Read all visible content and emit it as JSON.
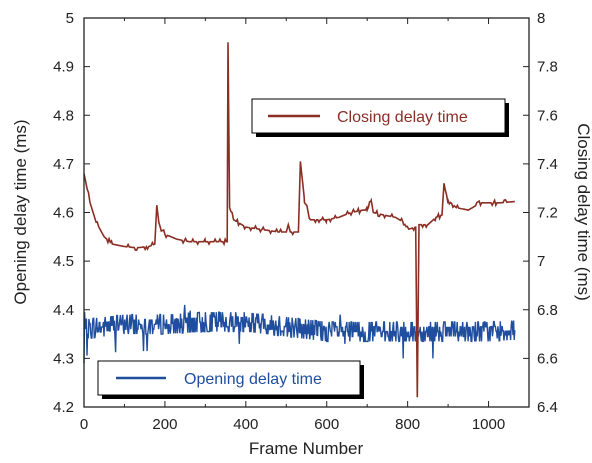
{
  "chart_data": {
    "type": "line",
    "xlabel": "Frame Number",
    "ylabel_left": "Opening delay time (ms)",
    "ylabel_right": "Closing delay time (ms)",
    "xlim": [
      0,
      1100
    ],
    "ylim_left": [
      4.2,
      5.0
    ],
    "ylim_right": [
      6.4,
      8.0
    ],
    "x_ticks": [
      "0",
      "200",
      "400",
      "600",
      "800",
      "1000"
    ],
    "y_left_ticks": [
      "4.2",
      "4.3",
      "4.4",
      "4.5",
      "4.6",
      "4.7",
      "4.8",
      "4.9",
      "5"
    ],
    "y_right_ticks": [
      "6.4",
      "6.6",
      "6.8",
      "7",
      "7.2",
      "7.4",
      "7.6",
      "7.8",
      "8"
    ],
    "grid": false,
    "series": [
      {
        "name": "Closing delay time",
        "axis": "right",
        "color": "#8B2E24",
        "points": [
          [
            0,
            7.36
          ],
          [
            5,
            7.32
          ],
          [
            15,
            7.24
          ],
          [
            30,
            7.16
          ],
          [
            50,
            7.1
          ],
          [
            70,
            7.07
          ],
          [
            100,
            7.06
          ],
          [
            130,
            7.055
          ],
          [
            160,
            7.06
          ],
          [
            175,
            7.07
          ],
          [
            180,
            7.23
          ],
          [
            185,
            7.15
          ],
          [
            200,
            7.11
          ],
          [
            230,
            7.09
          ],
          [
            260,
            7.08
          ],
          [
            300,
            7.08
          ],
          [
            340,
            7.08
          ],
          [
            354,
            7.08
          ],
          [
            356,
            7.9
          ],
          [
            360,
            7.22
          ],
          [
            370,
            7.17
          ],
          [
            400,
            7.14
          ],
          [
            440,
            7.13
          ],
          [
            480,
            7.12
          ],
          [
            500,
            7.12
          ],
          [
            505,
            7.15
          ],
          [
            510,
            7.12
          ],
          [
            530,
            7.12
          ],
          [
            535,
            7.41
          ],
          [
            545,
            7.25
          ],
          [
            560,
            7.17
          ],
          [
            600,
            7.17
          ],
          [
            630,
            7.18
          ],
          [
            660,
            7.2
          ],
          [
            690,
            7.21
          ],
          [
            700,
            7.21
          ],
          [
            710,
            7.25
          ],
          [
            715,
            7.2
          ],
          [
            740,
            7.19
          ],
          [
            770,
            7.18
          ],
          [
            790,
            7.16
          ],
          [
            800,
            7.13
          ],
          [
            820,
            7.14
          ],
          [
            824,
            6.44
          ],
          [
            828,
            7.15
          ],
          [
            850,
            7.15
          ],
          [
            870,
            7.18
          ],
          [
            885,
            7.19
          ],
          [
            890,
            7.31
          ],
          [
            900,
            7.25
          ],
          [
            920,
            7.22
          ],
          [
            950,
            7.21
          ],
          [
            980,
            7.24
          ],
          [
            1000,
            7.24
          ],
          [
            1030,
            7.24
          ],
          [
            1065,
            7.245
          ]
        ]
      },
      {
        "name": "Opening delay time",
        "axis": "left",
        "color": "#1F4E9E",
        "mean_by_frame": [
          [
            0,
            4.36
          ],
          [
            100,
            4.37
          ],
          [
            200,
            4.37
          ],
          [
            300,
            4.375
          ],
          [
            400,
            4.375
          ],
          [
            500,
            4.365
          ],
          [
            600,
            4.355
          ],
          [
            700,
            4.355
          ],
          [
            800,
            4.355
          ],
          [
            900,
            4.355
          ],
          [
            1000,
            4.355
          ],
          [
            1065,
            4.358
          ]
        ],
        "min": 4.29,
        "max": 4.41
      }
    ],
    "legend": [
      {
        "label": "Closing delay time",
        "placement": "upper-right"
      },
      {
        "label": "Opening delay time",
        "placement": "lower-left"
      }
    ]
  }
}
